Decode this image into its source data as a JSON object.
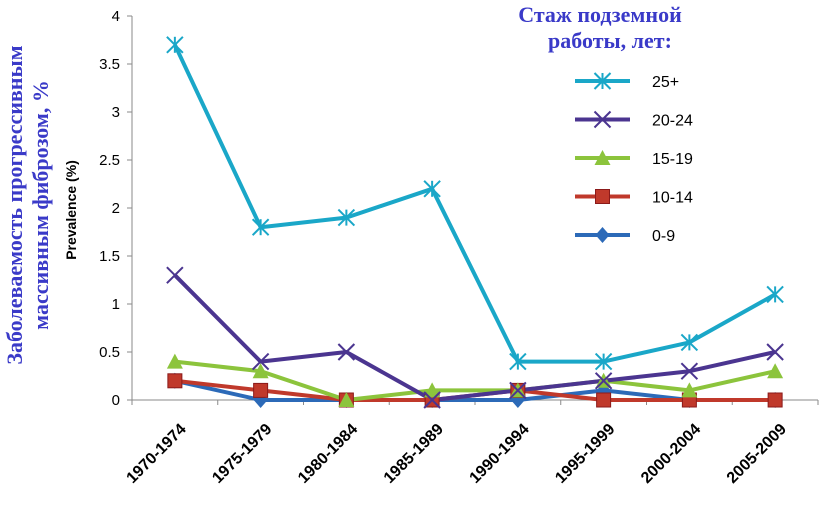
{
  "chart_data": {
    "type": "line",
    "categories": [
      "1970-1974",
      "1975-1979",
      "1980-1984",
      "1985-1989",
      "1990-1994",
      "1995-1999",
      "2000-2004",
      "2005-2009"
    ],
    "ylim": [
      0,
      4
    ],
    "yticks": [
      "0",
      "0.5",
      "1",
      "1.5",
      "2",
      "2.5",
      "3",
      "3.5",
      "4"
    ],
    "ylabel": "Prevalence (%)",
    "ylabel_ru": [
      "Заболеваемость прогрессивным",
      "массивным фиброзом, %"
    ],
    "legend_title": [
      "Стаж подземной",
      "работы, лет:"
    ],
    "legend_position": "top-right",
    "grid": false,
    "series": [
      {
        "name": "25+",
        "color": "#1aa7c8",
        "marker": "asterisk",
        "values": [
          3.7,
          1.8,
          1.9,
          2.2,
          0.4,
          0.4,
          0.6,
          1.1
        ]
      },
      {
        "name": "20-24",
        "color": "#4b3590",
        "marker": "x",
        "values": [
          1.3,
          0.4,
          0.5,
          0.0,
          0.1,
          0.2,
          0.3,
          0.5
        ]
      },
      {
        "name": "15-19",
        "color": "#8cc43c",
        "marker": "triangle",
        "values": [
          0.4,
          0.3,
          0.0,
          0.1,
          0.1,
          0.2,
          0.1,
          0.3
        ]
      },
      {
        "name": "10-14",
        "color": "#c0392b",
        "marker": "square",
        "values": [
          0.2,
          0.1,
          0.0,
          0.0,
          0.1,
          0.0,
          0.0,
          0.0
        ]
      },
      {
        "name": "0-9",
        "color": "#2c6ab8",
        "marker": "diamond",
        "values": [
          0.2,
          0.0,
          0.0,
          0.0,
          0.0,
          0.1,
          0.0,
          0.0
        ]
      }
    ]
  }
}
